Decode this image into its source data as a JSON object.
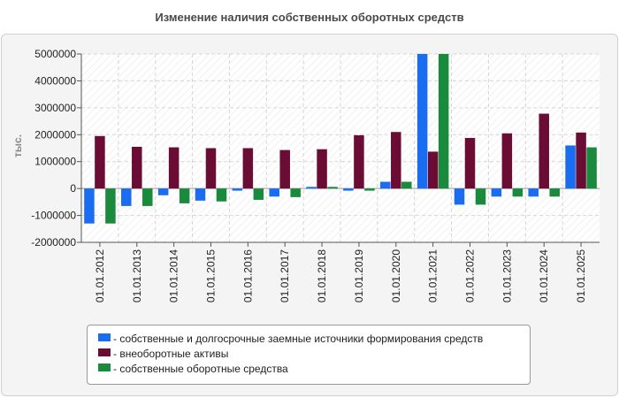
{
  "chart_data": {
    "type": "bar",
    "title": "Изменение наличия собственных оборотных средств",
    "ylabel": "тыс.",
    "xlabel": "",
    "ylim": [
      -2000000,
      5000000
    ],
    "yticks": [
      5000000,
      4000000,
      3000000,
      2000000,
      1000000,
      0,
      -1000000,
      -2000000
    ],
    "ytick_labels": [
      "5000000",
      "4000000",
      "3000000",
      "2000000",
      "1000000",
      "0",
      "-1000000",
      "-2000000"
    ],
    "grid": true,
    "legend_position": "bottom",
    "categories": [
      "01.01.2012",
      "01.01.2013",
      "01.01.2014",
      "01.01.2015",
      "01.01.2016",
      "01.01.2017",
      "01.01.2018",
      "01.01.2019",
      "01.01.2020",
      "01.01.2021",
      "01.01.2022",
      "01.01.2023",
      "01.01.2024",
      "01.01.2025"
    ],
    "series": [
      {
        "name": "- собственные и долгосрочные заемные источники формирования средств",
        "color": "#1a6cf0",
        "values": [
          -1300000,
          -650000,
          -250000,
          -450000,
          -80000,
          -300000,
          60000,
          -80000,
          250000,
          5000000,
          -600000,
          -300000,
          -300000,
          1600000
        ]
      },
      {
        "name": "- внеоборотные активы",
        "color": "#6b0c35",
        "values": [
          1950000,
          1550000,
          1530000,
          1500000,
          1500000,
          1430000,
          1460000,
          1980000,
          2100000,
          1370000,
          1880000,
          2050000,
          2780000,
          2080000
        ]
      },
      {
        "name": "- собственные оборотные средства",
        "color": "#1a8a3c",
        "values": [
          -1300000,
          -650000,
          -550000,
          -480000,
          -420000,
          -320000,
          60000,
          -80000,
          250000,
          5000000,
          -600000,
          -300000,
          -300000,
          1530000
        ]
      }
    ]
  }
}
